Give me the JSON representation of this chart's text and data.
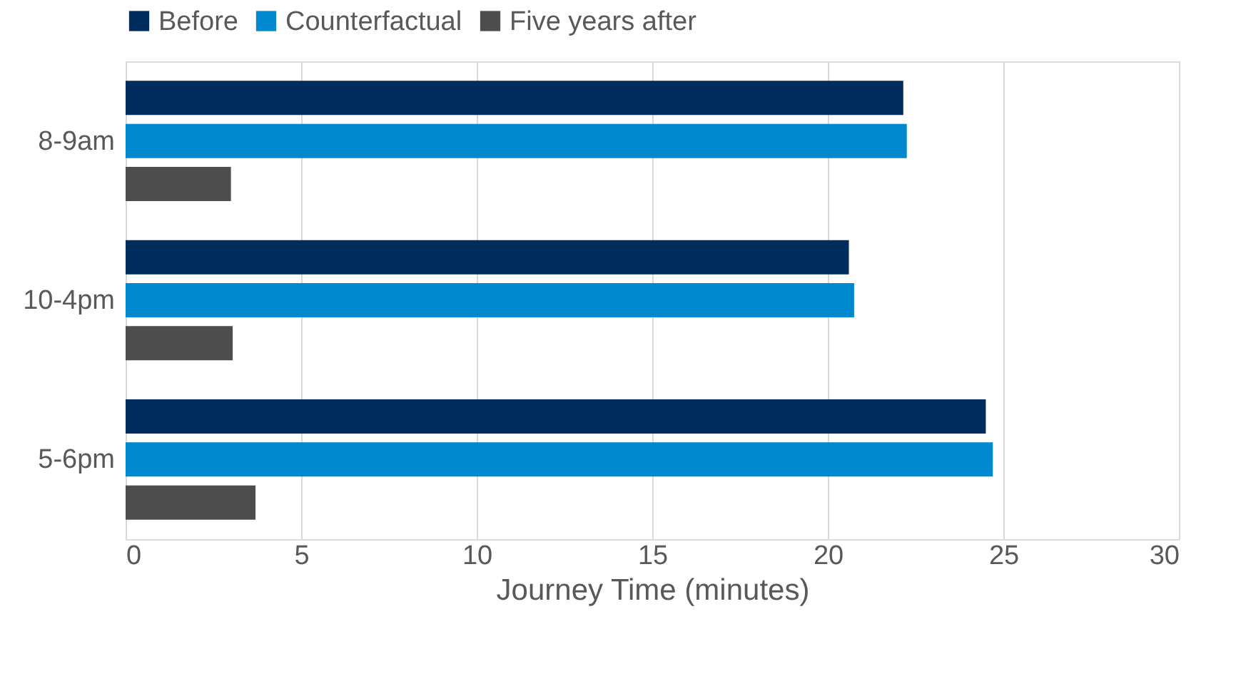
{
  "chart_data": {
    "type": "bar",
    "orientation": "horizontal",
    "xlabel": "Journey Time (minutes)",
    "categories": [
      "8-9am",
      "10-4pm",
      "5-6pm"
    ],
    "series": [
      {
        "name": "Before",
        "color": "#002d5c",
        "values": [
          22.15,
          20.6,
          24.5
        ]
      },
      {
        "name": "Counterfactual",
        "color": "#0089cf",
        "values": [
          22.25,
          20.75,
          24.7
        ]
      },
      {
        "name": "Five years after",
        "color": "#4d4d4d",
        "values": [
          3.0,
          3.05,
          3.7
        ]
      }
    ],
    "xlim": [
      0,
      30
    ],
    "xticks": [
      0,
      5,
      10,
      15,
      20,
      25,
      30
    ],
    "grid": "x",
    "legend": "top"
  }
}
